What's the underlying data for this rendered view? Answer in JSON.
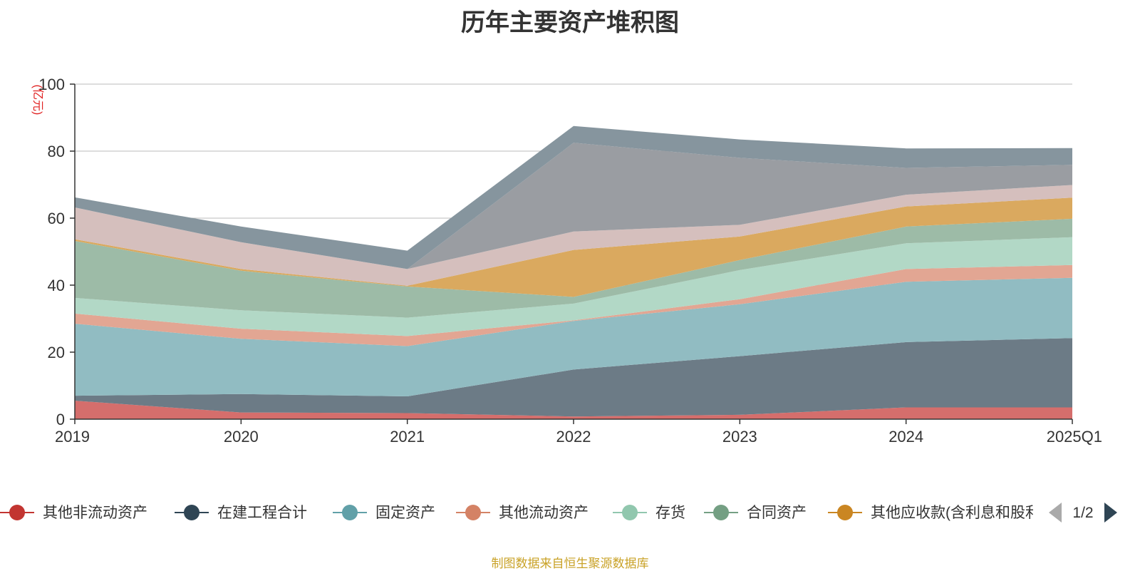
{
  "chart_data": {
    "type": "area",
    "stacked": true,
    "title": "历年主要资产堆积图",
    "y_unit": "(亿元)",
    "categories": [
      "2019",
      "2020",
      "2021",
      "2022",
      "2023",
      "2024",
      "2025Q1"
    ],
    "ylim": [
      0,
      100
    ],
    "yticks": [
      0,
      20,
      40,
      60,
      80,
      100
    ],
    "grid": true,
    "legend_position": "bottom",
    "legend_page": "1/2",
    "source": "制图数据来自恒生聚源数据库",
    "series": [
      {
        "name": "其他非流动资产",
        "legend_color": "#c23531",
        "fill": "#d56e6c",
        "values": [
          5.5,
          2.0,
          1.8,
          0.8,
          1.3,
          3.5,
          3.5
        ]
      },
      {
        "name": "在建工程合计",
        "legend_color": "#2f4554",
        "fill": "#6c7b86",
        "values": [
          1.5,
          5.5,
          5.0,
          14.0,
          17.5,
          19.5,
          20.7
        ]
      },
      {
        "name": "固定资产",
        "legend_color": "#61a0a8",
        "fill": "#91bcc2",
        "values": [
          21.5,
          16.5,
          15.0,
          14.5,
          15.5,
          18.0,
          18.0
        ]
      },
      {
        "name": "其他流动资产",
        "legend_color": "#d48265",
        "fill": "#e2a693",
        "values": [
          3.0,
          3.0,
          3.0,
          0.2,
          1.5,
          3.8,
          3.8
        ]
      },
      {
        "name": "存货",
        "legend_color": "#91c7ae",
        "fill": "#b2d8c6",
        "values": [
          4.7,
          5.5,
          5.5,
          5.0,
          8.7,
          7.7,
          8.3
        ]
      },
      {
        "name": "合同资产",
        "legend_color": "#749f83",
        "fill": "#9dbba7",
        "values": [
          17.0,
          11.8,
          9.3,
          2.0,
          3.0,
          5.0,
          5.5
        ]
      },
      {
        "name": "其他应收款(含利息和股利)",
        "legend_color": "#ca8622",
        "fill": "#daa95f",
        "values": [
          0.5,
          0.5,
          0.2,
          14.0,
          7.0,
          6.0,
          6.3
        ]
      },
      {
        "name": "",
        "fill": "#d5bfbd",
        "values": [
          9.5,
          8.0,
          5.0,
          5.5,
          3.5,
          3.5,
          3.8
        ]
      },
      {
        "name": "",
        "fill": "#9a9da2",
        "values": [
          0.0,
          0.0,
          0.0,
          26.5,
          20.0,
          8.0,
          6.0
        ]
      },
      {
        "name": "",
        "fill": "#86959e",
        "values": [
          3.0,
          4.7,
          5.5,
          5.0,
          5.5,
          5.8,
          5.0
        ]
      }
    ]
  }
}
